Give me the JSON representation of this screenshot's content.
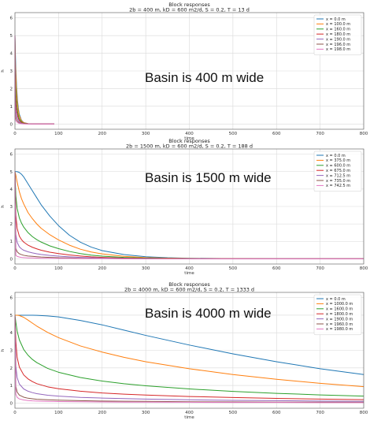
{
  "chart_data": [
    {
      "type": "line",
      "title": "Block responses",
      "subtitle": "2b =  400 m, kD =  600 m2/d, S =  0.2, T = 13 d",
      "annotation": "Basin is 400 m  wide",
      "xlabel": "time",
      "ylabel": "h",
      "xlim": [
        0,
        800
      ],
      "ylim": [
        -0.3,
        6.3
      ],
      "xticks": [
        0,
        100,
        200,
        300,
        400,
        500,
        600,
        700,
        800
      ],
      "yticks": [
        0,
        1,
        2,
        3,
        4,
        5,
        6
      ],
      "grid": true,
      "legend_position": "top-right",
      "x": [
        0,
        0.5,
        1,
        2,
        4,
        6,
        8,
        10,
        15,
        20,
        30,
        40,
        60,
        90
      ],
      "series": [
        {
          "name": "x = 0.0 m",
          "color": "#1f77b4",
          "values": [
            5.0,
            4.5,
            4.0,
            3.1,
            2.0,
            1.3,
            0.85,
            0.55,
            0.2,
            0.08,
            0.02,
            0.01,
            0,
            0
          ]
        },
        {
          "name": "x = 100.0 m",
          "color": "#ff7f0e",
          "values": [
            5.0,
            4.1,
            3.5,
            2.7,
            1.7,
            1.1,
            0.72,
            0.47,
            0.17,
            0.07,
            0.02,
            0.01,
            0,
            0
          ]
        },
        {
          "name": "x = 160.0 m",
          "color": "#2ca02c",
          "values": [
            5.0,
            3.2,
            2.5,
            1.8,
            1.1,
            0.7,
            0.46,
            0.3,
            0.11,
            0.04,
            0.01,
            0,
            0,
            0
          ]
        },
        {
          "name": "x = 180.0 m",
          "color": "#d62728",
          "values": [
            5.0,
            2.4,
            1.8,
            1.2,
            0.75,
            0.48,
            0.31,
            0.2,
            0.07,
            0.03,
            0.01,
            0,
            0,
            0
          ]
        },
        {
          "name": "x = 190.0 m",
          "color": "#9467bd",
          "values": [
            5.0,
            1.5,
            1.1,
            0.75,
            0.45,
            0.29,
            0.19,
            0.12,
            0.04,
            0.02,
            0,
            0,
            0,
            0
          ]
        },
        {
          "name": "x = 196.0 m",
          "color": "#8c564b",
          "values": [
            5.0,
            0.8,
            0.55,
            0.38,
            0.23,
            0.15,
            0.1,
            0.06,
            0.02,
            0.01,
            0,
            0,
            0,
            0
          ]
        },
        {
          "name": "x = 198.0 m",
          "color": "#e377c2",
          "values": [
            5.0,
            0.4,
            0.28,
            0.19,
            0.12,
            0.08,
            0.05,
            0.03,
            0.01,
            0,
            0,
            0,
            0,
            0
          ]
        }
      ]
    },
    {
      "type": "line",
      "title": "Block responses",
      "subtitle": "2b = 1500 m, kD =  600 m2/d, S =  0.2, T = 188 d",
      "annotation": "Basin is 1500 m  wide",
      "xlabel": "time",
      "ylabel": "h",
      "xlim": [
        0,
        800
      ],
      "ylim": [
        -0.3,
        6.3
      ],
      "xticks": [
        0,
        100,
        200,
        300,
        400,
        500,
        600,
        700,
        800
      ],
      "yticks": [
        0,
        1,
        2,
        3,
        4,
        5,
        6
      ],
      "grid": true,
      "legend_position": "top-right",
      "x": [
        0,
        2,
        5,
        10,
        15,
        20,
        30,
        40,
        50,
        60,
        80,
        100,
        125,
        150,
        175,
        200,
        250,
        300,
        350,
        400,
        500,
        600,
        700,
        800
      ],
      "series": [
        {
          "name": "x = 0.0 m",
          "color": "#1f77b4",
          "values": [
            5.0,
            5.0,
            5.0,
            4.95,
            4.85,
            4.7,
            4.3,
            3.9,
            3.5,
            3.1,
            2.45,
            1.9,
            1.35,
            0.95,
            0.67,
            0.47,
            0.24,
            0.12,
            0.06,
            0.03,
            0.01,
            0,
            0,
            0
          ]
        },
        {
          "name": "x = 375.0 m",
          "color": "#ff7f0e",
          "values": [
            5.0,
            4.8,
            4.4,
            3.85,
            3.45,
            3.15,
            2.65,
            2.3,
            2.0,
            1.75,
            1.38,
            1.08,
            0.78,
            0.55,
            0.39,
            0.28,
            0.14,
            0.07,
            0.04,
            0.02,
            0.01,
            0,
            0,
            0
          ]
        },
        {
          "name": "x = 600.0 m",
          "color": "#2ca02c",
          "values": [
            5.0,
            3.6,
            2.9,
            2.35,
            2.05,
            1.82,
            1.5,
            1.27,
            1.1,
            0.96,
            0.74,
            0.58,
            0.42,
            0.3,
            0.21,
            0.15,
            0.08,
            0.04,
            0.02,
            0.01,
            0,
            0,
            0,
            0
          ]
        },
        {
          "name": "x = 675.0 m",
          "color": "#d62728",
          "values": [
            5.0,
            2.5,
            1.75,
            1.3,
            1.1,
            0.96,
            0.78,
            0.66,
            0.57,
            0.49,
            0.38,
            0.3,
            0.22,
            0.16,
            0.11,
            0.08,
            0.04,
            0.02,
            0.01,
            0,
            0,
            0,
            0,
            0
          ]
        },
        {
          "name": "x = 712.5 m",
          "color": "#9467bd",
          "values": [
            5.0,
            1.4,
            0.95,
            0.69,
            0.57,
            0.49,
            0.4,
            0.34,
            0.29,
            0.25,
            0.19,
            0.15,
            0.11,
            0.08,
            0.06,
            0.04,
            0.02,
            0.01,
            0,
            0,
            0,
            0,
            0,
            0
          ]
        },
        {
          "name": "x = 735.0 m",
          "color": "#8c564b",
          "values": [
            5.0,
            0.6,
            0.4,
            0.29,
            0.24,
            0.2,
            0.16,
            0.14,
            0.12,
            0.1,
            0.08,
            0.06,
            0.05,
            0.03,
            0.02,
            0.02,
            0.01,
            0,
            0,
            0,
            0,
            0,
            0,
            0
          ]
        },
        {
          "name": "x = 742.5 m",
          "color": "#e377c2",
          "values": [
            5.0,
            0.2,
            0.14,
            0.1,
            0.08,
            0.07,
            0.05,
            0.05,
            0.04,
            0.03,
            0.03,
            0.02,
            0.02,
            0.01,
            0.01,
            0.01,
            0,
            0,
            0,
            0,
            0,
            0,
            0,
            0
          ]
        }
      ]
    },
    {
      "type": "line",
      "title": "Block responses",
      "subtitle": "2b = 4000 m, kD =  600 m2/d, S =  0.2, T = 1333 d",
      "annotation": "Basin is 4000 m  wide",
      "xlabel": "time",
      "ylabel": "h",
      "xlim": [
        0,
        800
      ],
      "ylim": [
        -0.3,
        6.3
      ],
      "xticks": [
        0,
        100,
        200,
        300,
        400,
        500,
        600,
        700,
        800
      ],
      "yticks": [
        0,
        1,
        2,
        3,
        4,
        5,
        6
      ],
      "grid": true,
      "legend_position": "top-right",
      "x": [
        0,
        2,
        5,
        10,
        20,
        30,
        40,
        50,
        75,
        100,
        150,
        200,
        250,
        300,
        400,
        500,
        600,
        700,
        800
      ],
      "series": [
        {
          "name": "x = 0.0 m",
          "color": "#1f77b4",
          "values": [
            5.0,
            5.0,
            5.0,
            5.0,
            5.0,
            5.0,
            5.0,
            4.99,
            4.96,
            4.9,
            4.7,
            4.45,
            4.15,
            3.85,
            3.3,
            2.8,
            2.35,
            1.95,
            1.62
          ]
        },
        {
          "name": "x = 1000.0 m",
          "color": "#ff7f0e",
          "values": [
            5.0,
            5.0,
            5.0,
            4.98,
            4.88,
            4.72,
            4.55,
            4.38,
            4.02,
            3.72,
            3.25,
            2.9,
            2.6,
            2.35,
            1.95,
            1.62,
            1.35,
            1.12,
            0.93
          ]
        },
        {
          "name": "x = 1600.0 m",
          "color": "#2ca02c",
          "values": [
            5.0,
            4.6,
            4.1,
            3.6,
            3.05,
            2.72,
            2.48,
            2.3,
            1.97,
            1.75,
            1.45,
            1.25,
            1.1,
            0.98,
            0.8,
            0.66,
            0.55,
            0.46,
            0.39
          ]
        },
        {
          "name": "x = 1800.0 m",
          "color": "#d62728",
          "values": [
            5.0,
            3.5,
            2.6,
            2.05,
            1.6,
            1.37,
            1.22,
            1.1,
            0.92,
            0.81,
            0.67,
            0.57,
            0.5,
            0.45,
            0.37,
            0.31,
            0.26,
            0.22,
            0.19
          ]
        },
        {
          "name": "x = 1900.0 m",
          "color": "#9467bd",
          "values": [
            5.0,
            2.1,
            1.45,
            1.08,
            0.8,
            0.67,
            0.59,
            0.53,
            0.44,
            0.39,
            0.32,
            0.28,
            0.25,
            0.22,
            0.18,
            0.15,
            0.13,
            0.11,
            0.09
          ]
        },
        {
          "name": "x = 1960.0 m",
          "color": "#8c564b",
          "values": [
            5.0,
            0.95,
            0.62,
            0.45,
            0.33,
            0.27,
            0.24,
            0.21,
            0.18,
            0.16,
            0.13,
            0.11,
            0.1,
            0.09,
            0.07,
            0.06,
            0.05,
            0.05,
            0.04
          ]
        },
        {
          "name": "x = 1980.0 m",
          "color": "#e377c2",
          "values": [
            5.0,
            0.5,
            0.32,
            0.23,
            0.17,
            0.14,
            0.12,
            0.11,
            0.09,
            0.08,
            0.07,
            0.06,
            0.05,
            0.05,
            0.04,
            0.03,
            0.03,
            0.02,
            0.02
          ]
        }
      ]
    }
  ]
}
